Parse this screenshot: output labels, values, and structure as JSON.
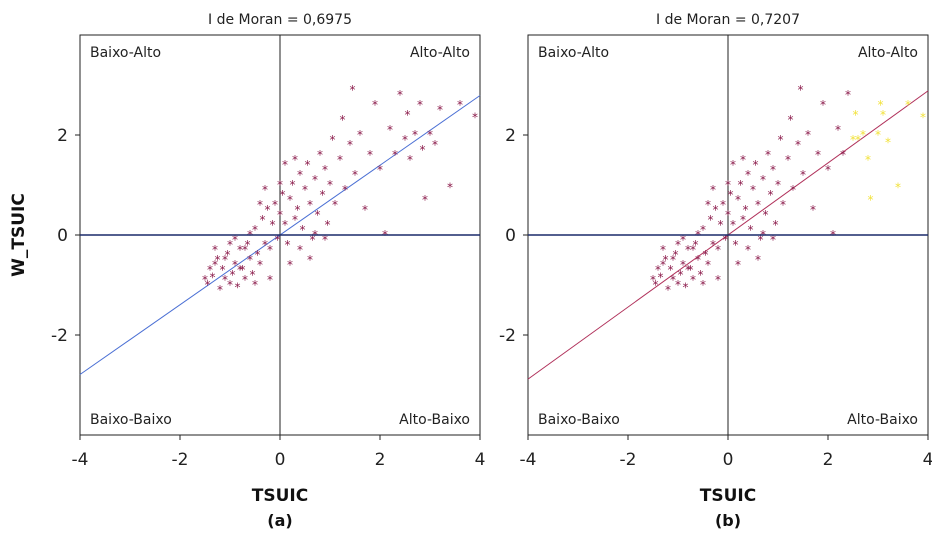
{
  "chart_data": [
    {
      "type": "scatter",
      "title": "I de Moran = 0,6975",
      "xlabel": "TSUIC",
      "ylabel": "W_TSUIC",
      "subcaption": "(a)",
      "xlim": [
        -4,
        4
      ],
      "ylim": [
        -4,
        4
      ],
      "xticks": [
        "-4",
        "-2",
        "0",
        "2",
        "4"
      ],
      "yticks": [
        "-2",
        "0",
        "2"
      ],
      "quadrants": {
        "top_left": "Baixo-Alto",
        "top_right": "Alto-Alto",
        "bottom_left": "Baixo-Baixo",
        "bottom_right": "Alto-Baixo"
      },
      "regression_slope": 0.6975,
      "colors": {
        "points": "#8b1a4a",
        "regression_line": "#4a6fd4",
        "zero_line": "#1a2a6a"
      },
      "series": [
        {
          "values_source": "points",
          "marker": "asterisk"
        }
      ],
      "points": [
        [
          -1.5,
          -0.9
        ],
        [
          -1.4,
          -0.7
        ],
        [
          -1.45,
          -1.0
        ],
        [
          -1.3,
          -0.6
        ],
        [
          -1.35,
          -0.85
        ],
        [
          -1.2,
          -1.1
        ],
        [
          -1.25,
          -0.5
        ],
        [
          -1.1,
          -0.9
        ],
        [
          -1.15,
          -0.7
        ],
        [
          -1.0,
          -1.0
        ],
        [
          -1.05,
          -0.4
        ],
        [
          -0.95,
          -0.8
        ],
        [
          -0.9,
          -0.6
        ],
        [
          -0.85,
          -1.05
        ],
        [
          -0.8,
          -0.3
        ],
        [
          -0.75,
          -0.7
        ],
        [
          -0.7,
          -0.9
        ],
        [
          -0.65,
          -0.2
        ],
        [
          -0.6,
          -0.5
        ],
        [
          -0.55,
          -0.8
        ],
        [
          -0.5,
          0.1
        ],
        [
          -0.45,
          -0.4
        ],
        [
          -0.4,
          -0.6
        ],
        [
          -0.35,
          0.3
        ],
        [
          -0.3,
          -0.2
        ],
        [
          -0.25,
          0.5
        ],
        [
          -0.2,
          -0.3
        ],
        [
          -0.15,
          0.2
        ],
        [
          -0.1,
          0.6
        ],
        [
          -0.05,
          -0.1
        ],
        [
          0.0,
          0.4
        ],
        [
          0.05,
          0.8
        ],
        [
          0.1,
          0.2
        ],
        [
          0.15,
          -0.2
        ],
        [
          0.2,
          0.7
        ],
        [
          0.25,
          1.0
        ],
        [
          0.3,
          0.3
        ],
        [
          0.35,
          0.5
        ],
        [
          0.4,
          1.2
        ],
        [
          0.45,
          0.1
        ],
        [
          0.5,
          0.9
        ],
        [
          0.55,
          1.4
        ],
        [
          0.6,
          0.6
        ],
        [
          0.65,
          -0.1
        ],
        [
          0.7,
          1.1
        ],
        [
          0.75,
          0.4
        ],
        [
          0.8,
          1.6
        ],
        [
          0.85,
          0.8
        ],
        [
          0.9,
          1.3
        ],
        [
          0.95,
          0.2
        ],
        [
          1.0,
          1.0
        ],
        [
          1.05,
          1.9
        ],
        [
          1.1,
          0.6
        ],
        [
          1.2,
          1.5
        ],
        [
          1.25,
          2.3
        ],
        [
          1.3,
          0.9
        ],
        [
          1.4,
          1.8
        ],
        [
          1.45,
          2.9
        ],
        [
          1.5,
          1.2
        ],
        [
          1.6,
          2.0
        ],
        [
          1.7,
          0.5
        ],
        [
          1.8,
          1.6
        ],
        [
          1.9,
          2.6
        ],
        [
          2.0,
          1.3
        ],
        [
          2.1,
          0.0
        ],
        [
          2.2,
          2.1
        ],
        [
          2.3,
          1.6
        ],
        [
          2.4,
          2.8
        ],
        [
          2.5,
          1.9
        ],
        [
          2.55,
          2.4
        ],
        [
          2.6,
          1.5
        ],
        [
          2.7,
          2.0
        ],
        [
          2.8,
          2.6
        ],
        [
          2.85,
          1.7
        ],
        [
          2.9,
          0.7
        ],
        [
          3.0,
          2.0
        ],
        [
          3.1,
          1.8
        ],
        [
          3.2,
          2.5
        ],
        [
          3.4,
          0.95
        ],
        [
          3.6,
          2.6
        ],
        [
          3.9,
          2.35
        ],
        [
          -1.0,
          -0.2
        ],
        [
          -0.6,
          0.0
        ],
        [
          -0.3,
          0.9
        ],
        [
          0.0,
          1.0
        ],
        [
          0.3,
          1.5
        ],
        [
          0.6,
          -0.5
        ],
        [
          -0.2,
          -0.9
        ],
        [
          0.2,
          -0.6
        ],
        [
          -1.3,
          -0.3
        ],
        [
          -0.9,
          -0.1
        ],
        [
          -0.4,
          0.6
        ],
        [
          0.1,
          1.4
        ],
        [
          0.4,
          -0.3
        ],
        [
          0.9,
          -0.1
        ],
        [
          -0.7,
          -0.3
        ],
        [
          -0.5,
          -1.0
        ],
        [
          -1.1,
          -0.5
        ],
        [
          -0.8,
          -0.7
        ],
        [
          0.7,
          0.0
        ]
      ]
    },
    {
      "type": "scatter",
      "title": "I de Moran = 0,7207",
      "xlabel": "TSUIC",
      "ylabel": "",
      "subcaption": "(b)",
      "xlim": [
        -4,
        4
      ],
      "ylim": [
        -4,
        4
      ],
      "xticks": [
        "-4",
        "-2",
        "0",
        "2",
        "4"
      ],
      "yticks": [
        "-2",
        "0",
        "2"
      ],
      "quadrants": {
        "top_left": "Baixo-Alto",
        "top_right": "Alto-Alto",
        "bottom_left": "Baixo-Baixo",
        "bottom_right": "Alto-Baixo"
      },
      "regression_slope": 0.7207,
      "colors": {
        "points": "#8b1a4a",
        "highlight": "#f2e23a",
        "regression_line": "#b0305a",
        "zero_line": "#1a2a6a"
      },
      "series": [
        {
          "values_source": "points",
          "marker": "asterisk"
        },
        {
          "values_source": "highlight_points",
          "marker": "asterisk"
        }
      ],
      "points": [
        [
          -1.5,
          -0.9
        ],
        [
          -1.4,
          -0.7
        ],
        [
          -1.45,
          -1.0
        ],
        [
          -1.3,
          -0.6
        ],
        [
          -1.35,
          -0.85
        ],
        [
          -1.2,
          -1.1
        ],
        [
          -1.25,
          -0.5
        ],
        [
          -1.1,
          -0.9
        ],
        [
          -1.15,
          -0.7
        ],
        [
          -1.0,
          -1.0
        ],
        [
          -1.05,
          -0.4
        ],
        [
          -0.95,
          -0.8
        ],
        [
          -0.9,
          -0.6
        ],
        [
          -0.85,
          -1.05
        ],
        [
          -0.8,
          -0.3
        ],
        [
          -0.75,
          -0.7
        ],
        [
          -0.7,
          -0.9
        ],
        [
          -0.65,
          -0.2
        ],
        [
          -0.6,
          -0.5
        ],
        [
          -0.55,
          -0.8
        ],
        [
          -0.5,
          0.1
        ],
        [
          -0.45,
          -0.4
        ],
        [
          -0.4,
          -0.6
        ],
        [
          -0.35,
          0.3
        ],
        [
          -0.3,
          -0.2
        ],
        [
          -0.25,
          0.5
        ],
        [
          -0.2,
          -0.3
        ],
        [
          -0.15,
          0.2
        ],
        [
          -0.1,
          0.6
        ],
        [
          -0.05,
          -0.1
        ],
        [
          0.0,
          0.4
        ],
        [
          0.05,
          0.8
        ],
        [
          0.1,
          0.2
        ],
        [
          0.15,
          -0.2
        ],
        [
          0.2,
          0.7
        ],
        [
          0.25,
          1.0
        ],
        [
          0.3,
          0.3
        ],
        [
          0.35,
          0.5
        ],
        [
          0.4,
          1.2
        ],
        [
          0.45,
          0.1
        ],
        [
          0.5,
          0.9
        ],
        [
          0.55,
          1.4
        ],
        [
          0.6,
          0.6
        ],
        [
          0.65,
          -0.1
        ],
        [
          0.7,
          1.1
        ],
        [
          0.75,
          0.4
        ],
        [
          0.8,
          1.6
        ],
        [
          0.85,
          0.8
        ],
        [
          0.9,
          1.3
        ],
        [
          0.95,
          0.2
        ],
        [
          1.0,
          1.0
        ],
        [
          1.05,
          1.9
        ],
        [
          1.1,
          0.6
        ],
        [
          1.2,
          1.5
        ],
        [
          1.25,
          2.3
        ],
        [
          1.3,
          0.9
        ],
        [
          1.4,
          1.8
        ],
        [
          1.45,
          2.9
        ],
        [
          1.5,
          1.2
        ],
        [
          1.6,
          2.0
        ],
        [
          1.7,
          0.5
        ],
        [
          1.8,
          1.6
        ],
        [
          1.9,
          2.6
        ],
        [
          2.0,
          1.3
        ],
        [
          2.1,
          0.0
        ],
        [
          2.2,
          2.1
        ],
        [
          2.3,
          1.6
        ],
        [
          2.4,
          2.8
        ],
        [
          -1.0,
          -0.2
        ],
        [
          -0.6,
          0.0
        ],
        [
          -0.3,
          0.9
        ],
        [
          0.0,
          1.0
        ],
        [
          0.3,
          1.5
        ],
        [
          0.6,
          -0.5
        ],
        [
          -0.2,
          -0.9
        ],
        [
          0.2,
          -0.6
        ],
        [
          -1.3,
          -0.3
        ],
        [
          -0.9,
          -0.1
        ],
        [
          -0.4,
          0.6
        ],
        [
          0.1,
          1.4
        ],
        [
          0.4,
          -0.3
        ],
        [
          0.9,
          -0.1
        ],
        [
          -0.7,
          -0.3
        ],
        [
          -0.5,
          -1.0
        ],
        [
          -1.1,
          -0.5
        ],
        [
          -0.8,
          -0.7
        ],
        [
          0.7,
          0.0
        ]
      ],
      "highlight_points": [
        [
          2.5,
          1.9
        ],
        [
          2.55,
          2.4
        ],
        [
          2.6,
          1.9
        ],
        [
          2.7,
          2.0
        ],
        [
          2.8,
          1.5
        ],
        [
          2.85,
          0.7
        ],
        [
          3.0,
          2.0
        ],
        [
          3.05,
          2.6
        ],
        [
          3.1,
          2.4
        ],
        [
          3.2,
          1.85
        ],
        [
          3.4,
          0.95
        ],
        [
          3.6,
          2.6
        ],
        [
          3.9,
          2.35
        ]
      ]
    }
  ]
}
